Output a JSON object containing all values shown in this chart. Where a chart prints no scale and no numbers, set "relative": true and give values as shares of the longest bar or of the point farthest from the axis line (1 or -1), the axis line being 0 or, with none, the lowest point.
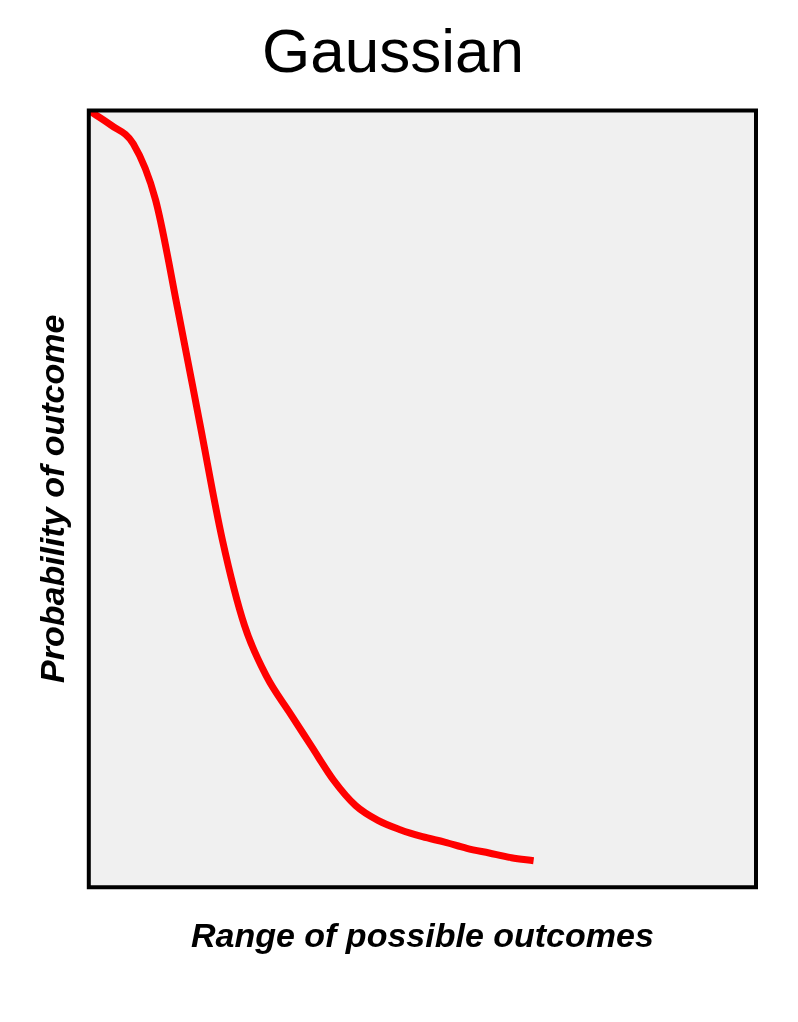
{
  "chart_data": {
    "type": "line",
    "title": "Gaussian",
    "xlabel": "Range of possible outcomes",
    "ylabel": "Probability of outcome",
    "relative": true,
    "grid": false,
    "legend": false,
    "marker": "none",
    "line_style": "solid",
    "categories": [
      null,
      null,
      null,
      null,
      null,
      null,
      null,
      null,
      null,
      null,
      null,
      null,
      null,
      null,
      null,
      null,
      null,
      null,
      null,
      null,
      null,
      null,
      null,
      null,
      null,
      null,
      null,
      null,
      null,
      null,
      null
    ],
    "series": [
      {
        "color": "#ff0000",
        "values": [
          1,
          0.981,
          0.957,
          0.885,
          0.744,
          0.596,
          0.448,
          0.337,
          0.271,
          0.226,
          0.182,
          0.138,
          0.105,
          0.086,
          0.074,
          0.065,
          0.058,
          0.05,
          0.044,
          0.038,
          0.034,
          null,
          null,
          null,
          null,
          null,
          null,
          null,
          null,
          null,
          null
        ]
      }
    ]
  }
}
